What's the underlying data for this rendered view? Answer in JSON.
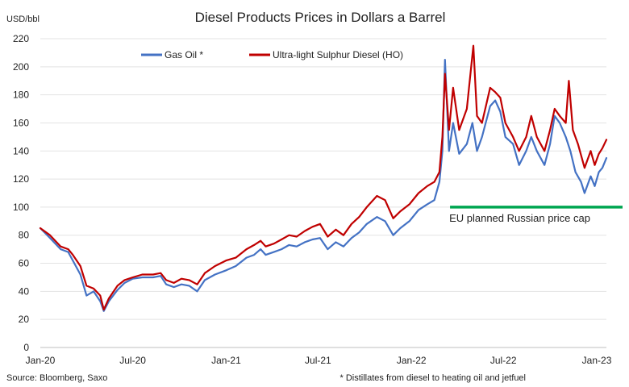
{
  "chart_data": {
    "type": "line",
    "title": "Diesel Products Prices in Dollars a Barrel",
    "ylabel": "USD/bbl",
    "xlabel": "",
    "ylim": [
      0,
      220
    ],
    "y_ticks": [
      "0",
      "20",
      "40",
      "60",
      "80",
      "100",
      "120",
      "140",
      "160",
      "180",
      "200",
      "220"
    ],
    "x_ticks": [
      {
        "label": "Jan-20",
        "date": "2020-01-01"
      },
      {
        "label": "Jul-20",
        "date": "2020-07-01"
      },
      {
        "label": "Jan-21",
        "date": "2021-01-01"
      },
      {
        "label": "Jul-21",
        "date": "2021-07-01"
      },
      {
        "label": "Jan-22",
        "date": "2022-01-01"
      },
      {
        "label": "Jul-22",
        "date": "2022-07-01"
      },
      {
        "label": "Jan-23",
        "date": "2023-01-01"
      }
    ],
    "x_range": [
      "2020-01-01",
      "2023-01-20"
    ],
    "legend_position": "top-center",
    "series": [
      {
        "name": "Gas Oil *",
        "color": "#4472C4",
        "points": [
          [
            "2020-01-01",
            85
          ],
          [
            "2020-01-20",
            78
          ],
          [
            "2020-02-10",
            70
          ],
          [
            "2020-02-25",
            68
          ],
          [
            "2020-03-05",
            62
          ],
          [
            "2020-03-20",
            52
          ],
          [
            "2020-04-01",
            37
          ],
          [
            "2020-04-15",
            40
          ],
          [
            "2020-04-28",
            33
          ],
          [
            "2020-05-05",
            26
          ],
          [
            "2020-05-15",
            33
          ],
          [
            "2020-06-01",
            41
          ],
          [
            "2020-06-15",
            46
          ],
          [
            "2020-07-01",
            49
          ],
          [
            "2020-07-20",
            50
          ],
          [
            "2020-08-10",
            50
          ],
          [
            "2020-08-25",
            51
          ],
          [
            "2020-09-05",
            45
          ],
          [
            "2020-09-20",
            43
          ],
          [
            "2020-10-05",
            45
          ],
          [
            "2020-10-20",
            44
          ],
          [
            "2020-11-05",
            40
          ],
          [
            "2020-11-20",
            48
          ],
          [
            "2020-12-10",
            52
          ],
          [
            "2021-01-01",
            55
          ],
          [
            "2021-01-20",
            58
          ],
          [
            "2021-02-10",
            64
          ],
          [
            "2021-02-25",
            66
          ],
          [
            "2021-03-10",
            70
          ],
          [
            "2021-03-20",
            66
          ],
          [
            "2021-04-05",
            68
          ],
          [
            "2021-04-20",
            70
          ],
          [
            "2021-05-05",
            73
          ],
          [
            "2021-05-20",
            72
          ],
          [
            "2021-06-05",
            75
          ],
          [
            "2021-06-20",
            77
          ],
          [
            "2021-07-05",
            78
          ],
          [
            "2021-07-20",
            70
          ],
          [
            "2021-08-05",
            75
          ],
          [
            "2021-08-20",
            72
          ],
          [
            "2021-09-05",
            78
          ],
          [
            "2021-09-20",
            82
          ],
          [
            "2021-10-05",
            88
          ],
          [
            "2021-10-25",
            93
          ],
          [
            "2021-11-10",
            90
          ],
          [
            "2021-11-26",
            80
          ],
          [
            "2021-12-10",
            85
          ],
          [
            "2021-12-28",
            90
          ],
          [
            "2022-01-15",
            98
          ],
          [
            "2022-02-01",
            102
          ],
          [
            "2022-02-15",
            105
          ],
          [
            "2022-02-25",
            118
          ],
          [
            "2022-03-03",
            140
          ],
          [
            "2022-03-08",
            205
          ],
          [
            "2022-03-16",
            140
          ],
          [
            "2022-03-24",
            160
          ],
          [
            "2022-04-05",
            138
          ],
          [
            "2022-04-20",
            145
          ],
          [
            "2022-05-01",
            160
          ],
          [
            "2022-05-10",
            140
          ],
          [
            "2022-05-20",
            150
          ],
          [
            "2022-06-05",
            172
          ],
          [
            "2022-06-15",
            176
          ],
          [
            "2022-06-25",
            168
          ],
          [
            "2022-07-05",
            150
          ],
          [
            "2022-07-20",
            145
          ],
          [
            "2022-08-01",
            130
          ],
          [
            "2022-08-15",
            140
          ],
          [
            "2022-08-25",
            150
          ],
          [
            "2022-09-05",
            140
          ],
          [
            "2022-09-20",
            130
          ],
          [
            "2022-10-01",
            145
          ],
          [
            "2022-10-10",
            165
          ],
          [
            "2022-10-20",
            160
          ],
          [
            "2022-11-01",
            150
          ],
          [
            "2022-11-10",
            140
          ],
          [
            "2022-11-20",
            125
          ],
          [
            "2022-12-01",
            118
          ],
          [
            "2022-12-08",
            110
          ],
          [
            "2022-12-20",
            122
          ],
          [
            "2022-12-28",
            115
          ],
          [
            "2023-01-05",
            125
          ],
          [
            "2023-01-12",
            128
          ],
          [
            "2023-01-20",
            135
          ]
        ]
      },
      {
        "name": "Ultra-light Sulphur Diesel (HO)",
        "color": "#C00000",
        "points": [
          [
            "2020-01-01",
            85
          ],
          [
            "2020-01-20",
            80
          ],
          [
            "2020-02-10",
            72
          ],
          [
            "2020-02-25",
            70
          ],
          [
            "2020-03-05",
            66
          ],
          [
            "2020-03-20",
            58
          ],
          [
            "2020-04-01",
            44
          ],
          [
            "2020-04-15",
            42
          ],
          [
            "2020-04-28",
            37
          ],
          [
            "2020-05-05",
            27
          ],
          [
            "2020-05-15",
            35
          ],
          [
            "2020-06-01",
            44
          ],
          [
            "2020-06-15",
            48
          ],
          [
            "2020-07-01",
            50
          ],
          [
            "2020-07-20",
            52
          ],
          [
            "2020-08-10",
            52
          ],
          [
            "2020-08-25",
            53
          ],
          [
            "2020-09-05",
            48
          ],
          [
            "2020-09-20",
            46
          ],
          [
            "2020-10-05",
            49
          ],
          [
            "2020-10-20",
            48
          ],
          [
            "2020-11-05",
            45
          ],
          [
            "2020-11-20",
            53
          ],
          [
            "2020-12-10",
            58
          ],
          [
            "2021-01-01",
            62
          ],
          [
            "2021-01-20",
            64
          ],
          [
            "2021-02-10",
            70
          ],
          [
            "2021-02-25",
            73
          ],
          [
            "2021-03-10",
            76
          ],
          [
            "2021-03-20",
            72
          ],
          [
            "2021-04-05",
            74
          ],
          [
            "2021-04-20",
            77
          ],
          [
            "2021-05-05",
            80
          ],
          [
            "2021-05-20",
            79
          ],
          [
            "2021-06-05",
            83
          ],
          [
            "2021-06-20",
            86
          ],
          [
            "2021-07-05",
            88
          ],
          [
            "2021-07-20",
            79
          ],
          [
            "2021-08-05",
            84
          ],
          [
            "2021-08-20",
            80
          ],
          [
            "2021-09-05",
            88
          ],
          [
            "2021-09-20",
            93
          ],
          [
            "2021-10-05",
            100
          ],
          [
            "2021-10-25",
            108
          ],
          [
            "2021-11-10",
            105
          ],
          [
            "2021-11-26",
            92
          ],
          [
            "2021-12-10",
            97
          ],
          [
            "2021-12-28",
            102
          ],
          [
            "2022-01-15",
            110
          ],
          [
            "2022-02-01",
            115
          ],
          [
            "2022-02-15",
            118
          ],
          [
            "2022-02-25",
            125
          ],
          [
            "2022-03-03",
            150
          ],
          [
            "2022-03-08",
            195
          ],
          [
            "2022-03-16",
            155
          ],
          [
            "2022-03-24",
            185
          ],
          [
            "2022-04-05",
            155
          ],
          [
            "2022-04-20",
            170
          ],
          [
            "2022-05-03",
            215
          ],
          [
            "2022-05-10",
            165
          ],
          [
            "2022-05-20",
            160
          ],
          [
            "2022-06-05",
            185
          ],
          [
            "2022-06-15",
            182
          ],
          [
            "2022-06-25",
            178
          ],
          [
            "2022-07-05",
            160
          ],
          [
            "2022-07-20",
            150
          ],
          [
            "2022-08-01",
            140
          ],
          [
            "2022-08-15",
            150
          ],
          [
            "2022-08-25",
            165
          ],
          [
            "2022-09-05",
            150
          ],
          [
            "2022-09-20",
            140
          ],
          [
            "2022-10-01",
            155
          ],
          [
            "2022-10-10",
            170
          ],
          [
            "2022-10-20",
            165
          ],
          [
            "2022-11-01",
            160
          ],
          [
            "2022-11-07",
            190
          ],
          [
            "2022-11-15",
            155
          ],
          [
            "2022-11-25",
            145
          ],
          [
            "2022-12-08",
            128
          ],
          [
            "2022-12-20",
            140
          ],
          [
            "2022-12-28",
            130
          ],
          [
            "2023-01-05",
            138
          ],
          [
            "2023-01-12",
            142
          ],
          [
            "2023-01-20",
            148
          ]
        ]
      }
    ],
    "reference_line": {
      "label": "EU planned Russian price cap",
      "value": 100,
      "start_date": "2022-03-18",
      "color": "#00A651"
    }
  },
  "footer": {
    "source": "Source: Bloomberg, Saxo",
    "footnote": "* Distillates from diesel to heating oil and jetfuel"
  }
}
